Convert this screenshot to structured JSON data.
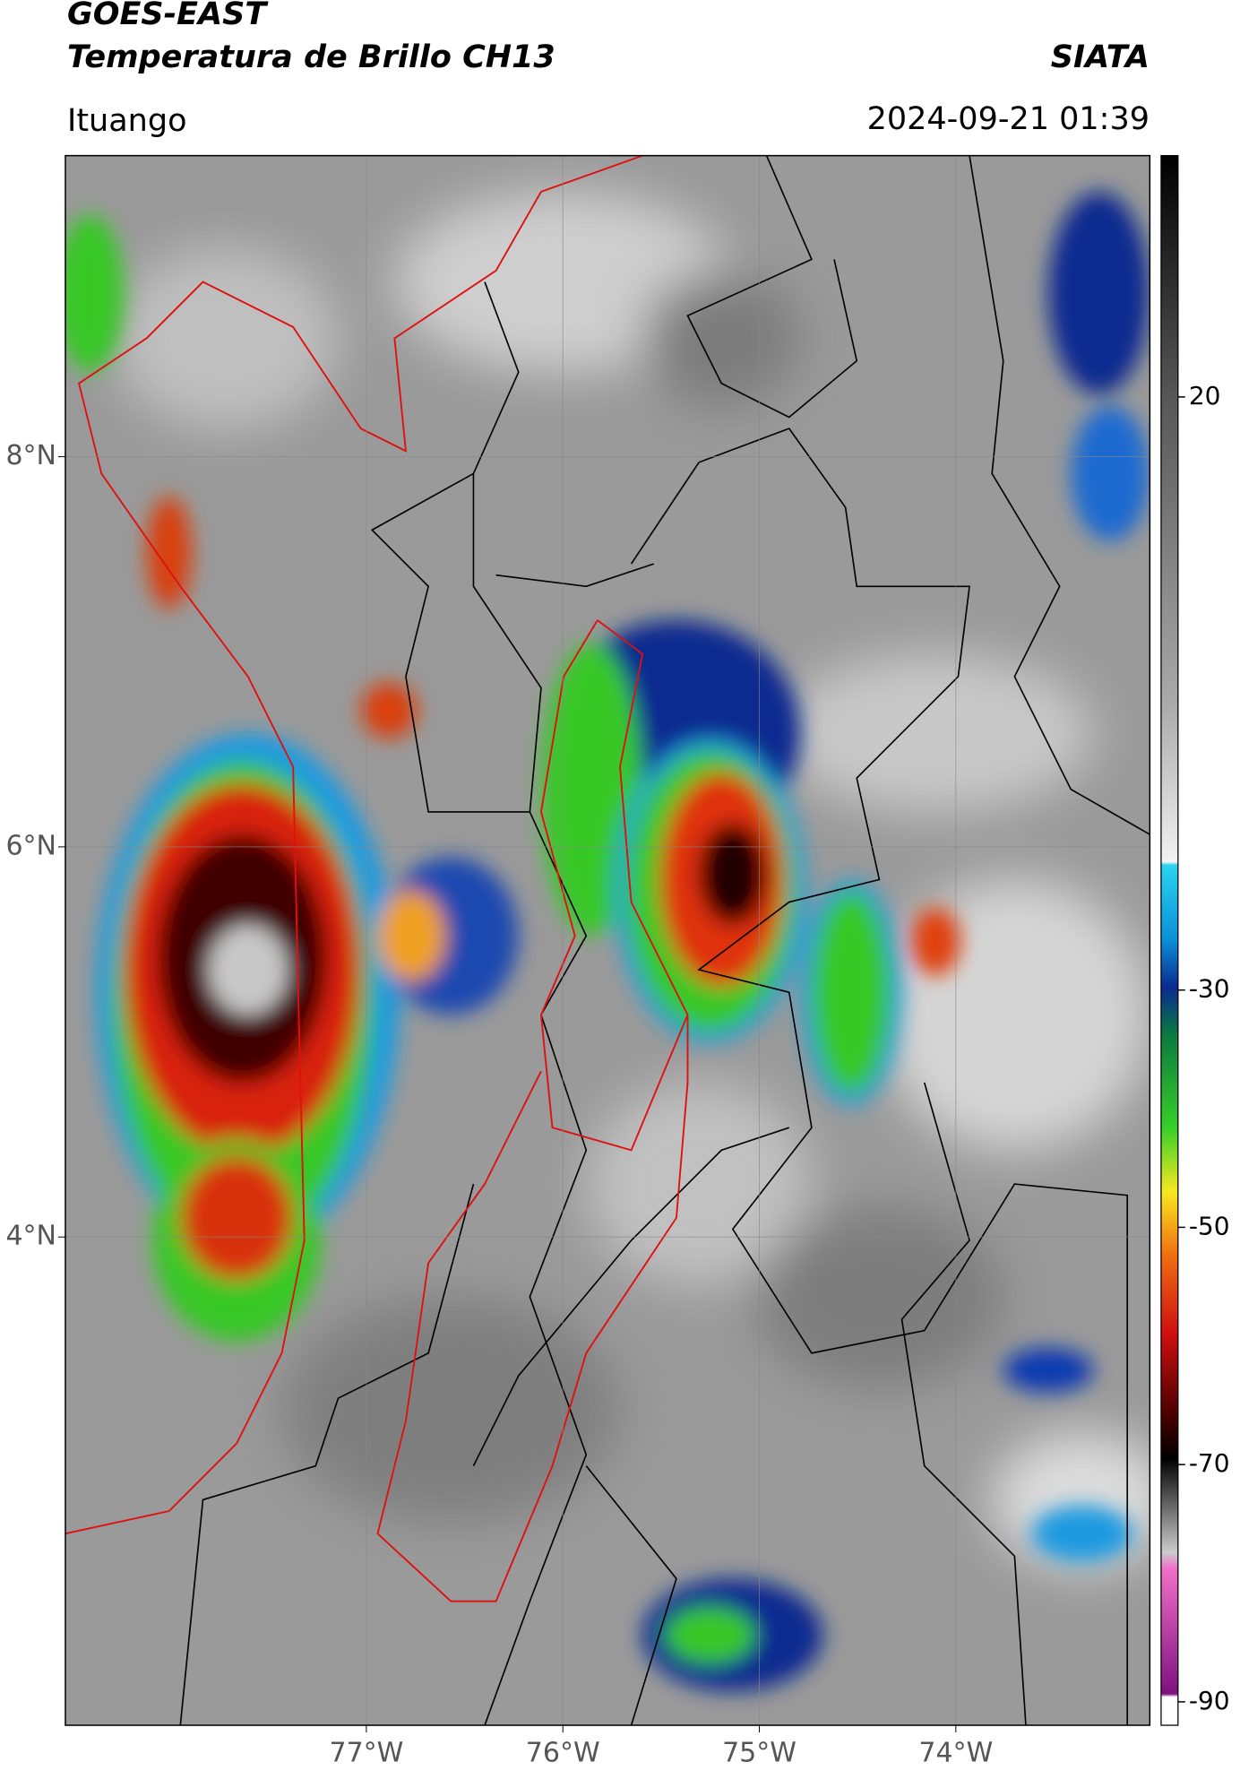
{
  "header": {
    "satellite": "GOES-EAST",
    "product": "Temperatura de Brillo CH13",
    "brand": "SIATA",
    "location": "Ituango",
    "datetime": "2024-09-21 01:39"
  },
  "map": {
    "lon_ticks": [
      {
        "value": -77,
        "label": "77°W"
      },
      {
        "value": -76,
        "label": "76°W"
      },
      {
        "value": -75,
        "label": "75°W"
      },
      {
        "value": -74,
        "label": "74°W"
      }
    ],
    "lat_ticks": [
      {
        "value": 8,
        "label": "8°N"
      },
      {
        "value": 6,
        "label": "6°N"
      },
      {
        "value": 4,
        "label": "4°N"
      }
    ]
  },
  "colorbar": {
    "ticks": [
      20,
      -30,
      -50,
      -70,
      -90
    ]
  }
}
